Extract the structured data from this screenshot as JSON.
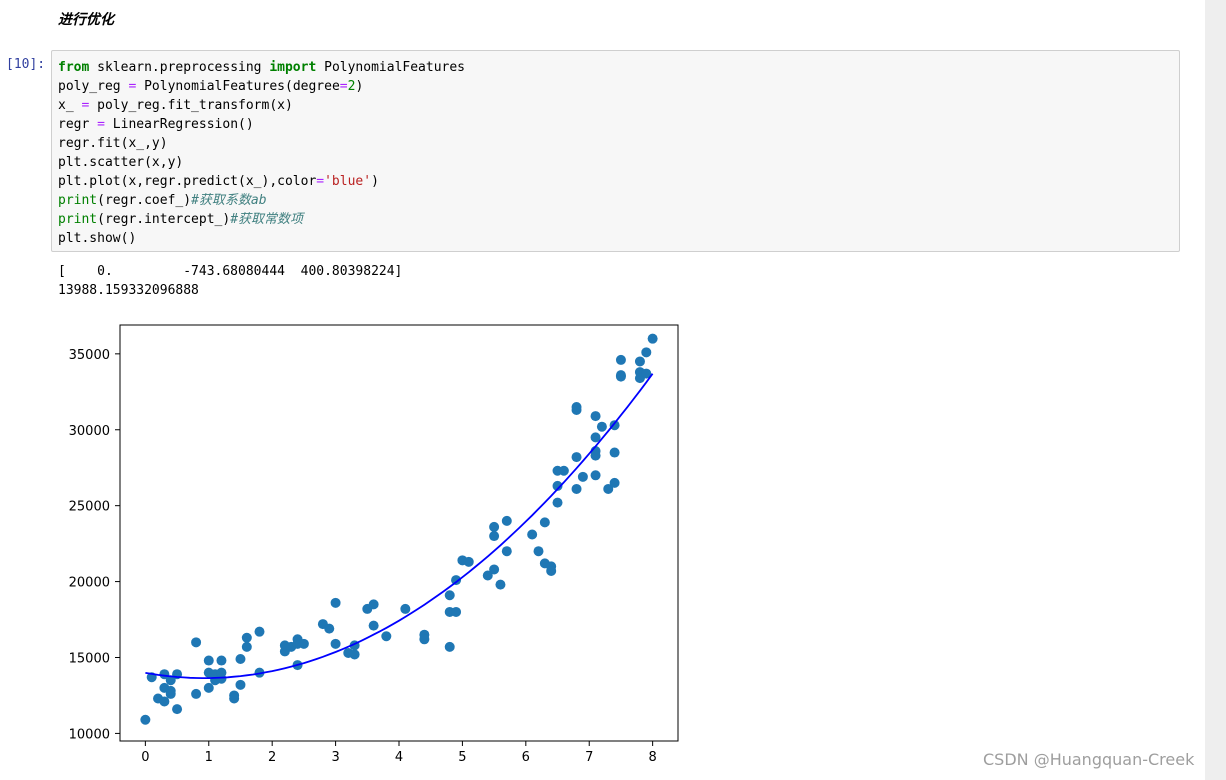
{
  "heading": "进行优化",
  "cell": {
    "prompt": "[10]:",
    "code_lines": [
      [
        {
          "t": "from",
          "c": "kw"
        },
        {
          "t": " sklearn.preprocessing "
        },
        {
          "t": "import",
          "c": "kw"
        },
        {
          "t": " PolynomialFeatures"
        }
      ],
      [
        {
          "t": "poly_reg "
        },
        {
          "t": "=",
          "c": "op"
        },
        {
          "t": " PolynomialFeatures(degree"
        },
        {
          "t": "=",
          "c": "op"
        },
        {
          "t": "2",
          "c": "num"
        },
        {
          "t": ")"
        }
      ],
      [
        {
          "t": "x_ "
        },
        {
          "t": "=",
          "c": "op"
        },
        {
          "t": " poly_reg.fit_transform(x)"
        }
      ],
      [
        {
          "t": "regr "
        },
        {
          "t": "=",
          "c": "op"
        },
        {
          "t": " LinearRegression()"
        }
      ],
      [
        {
          "t": "regr.fit(x_,y)"
        }
      ],
      [
        {
          "t": "plt.scatter(x,y)"
        }
      ],
      [
        {
          "t": "plt.plot(x,regr.predict(x_),color"
        },
        {
          "t": "=",
          "c": "op"
        },
        {
          "t": "'blue'",
          "c": "str"
        },
        {
          "t": ")"
        }
      ],
      [
        {
          "t": "print",
          "c": "bi"
        },
        {
          "t": "(regr.coef_)"
        },
        {
          "t": "#获取系数ab",
          "c": "cm"
        }
      ],
      [
        {
          "t": "print",
          "c": "bi"
        },
        {
          "t": "(regr.intercept_)"
        },
        {
          "t": "#获取常数项",
          "c": "cm"
        }
      ],
      [
        {
          "t": "plt.show()"
        }
      ]
    ]
  },
  "output_lines": [
    "[    0.         -743.68080444  400.80398224]",
    "13988.159332096888"
  ],
  "chart_data": {
    "type": "scatter",
    "title": "",
    "xlabel": "",
    "ylabel": "",
    "xlim": [
      -0.4,
      8.4
    ],
    "ylim": [
      9500,
      36900
    ],
    "xticks": [
      0,
      1,
      2,
      3,
      4,
      5,
      6,
      7,
      8
    ],
    "yticks": [
      10000,
      15000,
      20000,
      25000,
      30000,
      35000
    ],
    "scatter_color": "#1f77b4",
    "line_color": "#0000ff",
    "points": [
      [
        0.0,
        10900
      ],
      [
        0.1,
        13700
      ],
      [
        0.2,
        12300
      ],
      [
        0.3,
        12100
      ],
      [
        0.3,
        13000
      ],
      [
        0.3,
        13900
      ],
      [
        0.4,
        13500
      ],
      [
        0.4,
        12800
      ],
      [
        0.4,
        12600
      ],
      [
        0.5,
        11600
      ],
      [
        0.5,
        13900
      ],
      [
        0.8,
        16000
      ],
      [
        0.8,
        12600
      ],
      [
        1.0,
        14800
      ],
      [
        1.0,
        14000
      ],
      [
        1.0,
        13000
      ],
      [
        1.1,
        13900
      ],
      [
        1.1,
        13500
      ],
      [
        1.2,
        14800
      ],
      [
        1.2,
        14000
      ],
      [
        1.2,
        13600
      ],
      [
        1.4,
        12500
      ],
      [
        1.4,
        12300
      ],
      [
        1.5,
        13200
      ],
      [
        1.5,
        14900
      ],
      [
        1.6,
        16300
      ],
      [
        1.6,
        15700
      ],
      [
        1.8,
        16700
      ],
      [
        1.8,
        14000
      ],
      [
        2.2,
        15400
      ],
      [
        2.2,
        15800
      ],
      [
        2.3,
        15700
      ],
      [
        2.4,
        16200
      ],
      [
        2.4,
        15900
      ],
      [
        2.4,
        14500
      ],
      [
        2.5,
        15900
      ],
      [
        2.8,
        17200
      ],
      [
        2.9,
        16900
      ],
      [
        3.0,
        18600
      ],
      [
        3.0,
        15900
      ],
      [
        3.2,
        15300
      ],
      [
        3.3,
        15200
      ],
      [
        3.3,
        15800
      ],
      [
        3.5,
        18200
      ],
      [
        3.6,
        18500
      ],
      [
        3.6,
        17100
      ],
      [
        3.8,
        16400
      ],
      [
        4.1,
        18200
      ],
      [
        4.4,
        16500
      ],
      [
        4.4,
        16200
      ],
      [
        4.8,
        19100
      ],
      [
        4.8,
        18000
      ],
      [
        4.8,
        15700
      ],
      [
        4.9,
        18000
      ],
      [
        4.9,
        20100
      ],
      [
        5.0,
        21400
      ],
      [
        5.1,
        21300
      ],
      [
        5.4,
        20400
      ],
      [
        5.5,
        20800
      ],
      [
        5.5,
        23600
      ],
      [
        5.5,
        23000
      ],
      [
        5.6,
        19800
      ],
      [
        5.7,
        24000
      ],
      [
        5.7,
        22000
      ],
      [
        6.1,
        23100
      ],
      [
        6.2,
        22000
      ],
      [
        6.3,
        21200
      ],
      [
        6.3,
        23900
      ],
      [
        6.4,
        21000
      ],
      [
        6.4,
        20700
      ],
      [
        6.5,
        25200
      ],
      [
        6.5,
        26300
      ],
      [
        6.5,
        27300
      ],
      [
        6.6,
        27300
      ],
      [
        6.8,
        26100
      ],
      [
        6.8,
        28200
      ],
      [
        6.8,
        31300
      ],
      [
        6.8,
        31500
      ],
      [
        6.9,
        26900
      ],
      [
        7.1,
        30900
      ],
      [
        7.1,
        29500
      ],
      [
        7.1,
        28600
      ],
      [
        7.1,
        28300
      ],
      [
        7.1,
        27000
      ],
      [
        7.2,
        30200
      ],
      [
        7.3,
        26100
      ],
      [
        7.4,
        30300
      ],
      [
        7.4,
        28500
      ],
      [
        7.4,
        26500
      ],
      [
        7.5,
        33600
      ],
      [
        7.5,
        34600
      ],
      [
        7.5,
        33500
      ],
      [
        7.8,
        34500
      ],
      [
        7.8,
        33800
      ],
      [
        7.8,
        33400
      ],
      [
        7.9,
        33700
      ],
      [
        7.9,
        35100
      ],
      [
        8.0,
        36000
      ]
    ],
    "fit": {
      "intercept": 13988.159332096888,
      "coef": [
        0.0,
        -743.68080444,
        400.80398224
      ],
      "x_range": [
        0,
        8
      ]
    }
  },
  "watermark": "CSDN @Huangquan-Creek"
}
